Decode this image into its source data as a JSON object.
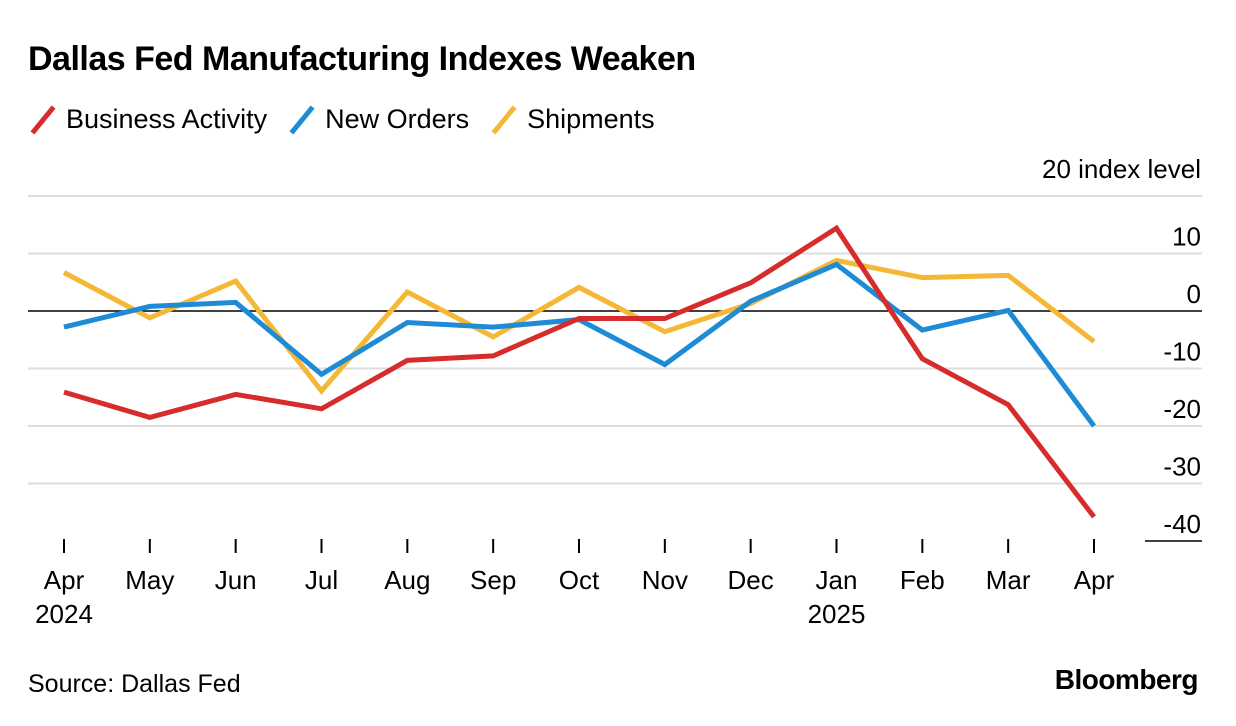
{
  "title": "Dallas Fed Manufacturing Indexes Weaken",
  "source": "Source: Dallas Fed",
  "brand": "Bloomberg",
  "legend": [
    {
      "label": "Business Activity",
      "color": "#d62c2c"
    },
    {
      "label": "New Orders",
      "color": "#1f8bd6"
    },
    {
      "label": "Shipments",
      "color": "#f5b836"
    }
  ],
  "chart_data": {
    "type": "line",
    "title": "Dallas Fed Manufacturing Indexes Weaken",
    "ylabel": "index level",
    "ylim": [
      -40,
      20
    ],
    "yticks": [
      20,
      10,
      0,
      -10,
      -20,
      -30,
      -40
    ],
    "ytick_labels": [
      "20 index level",
      "10",
      "0",
      "-10",
      "-20",
      "-30",
      "-40"
    ],
    "x": [
      "Apr",
      "May",
      "Jun",
      "Jul",
      "Aug",
      "Sep",
      "Oct",
      "Nov",
      "Dec",
      "Jan",
      "Feb",
      "Mar",
      "Apr"
    ],
    "x_year_labels": {
      "0": "2024",
      "9": "2025"
    },
    "grid": true,
    "legend_position": "top-left",
    "series": [
      {
        "name": "Business Activity",
        "color": "#d62c2c",
        "values": [
          -14.1,
          -18.5,
          -14.5,
          -17.0,
          -8.6,
          -7.8,
          -1.3,
          -1.3,
          4.9,
          14.4,
          -8.3,
          -16.3,
          -35.8
        ]
      },
      {
        "name": "New Orders",
        "color": "#1f8bd6",
        "values": [
          -2.8,
          0.8,
          1.5,
          -11.0,
          -2.0,
          -2.8,
          -1.5,
          -9.3,
          1.7,
          8.1,
          -3.3,
          0.1,
          -20.0
        ]
      },
      {
        "name": "Shipments",
        "color": "#f5b836",
        "values": [
          6.7,
          -1.2,
          5.2,
          -13.9,
          3.3,
          -4.5,
          4.1,
          -3.6,
          1.3,
          8.8,
          5.8,
          6.2,
          -5.3
        ]
      }
    ]
  }
}
